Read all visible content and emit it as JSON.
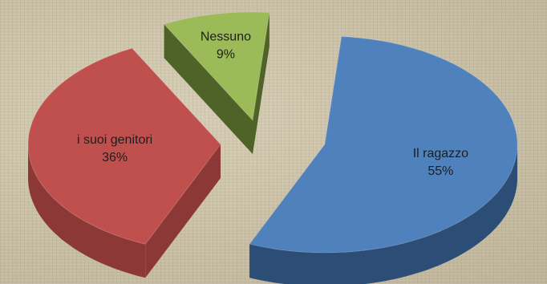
{
  "chart_data": {
    "type": "pie",
    "title": "",
    "slices": [
      {
        "label": "Il ragazzo",
        "value": 55,
        "value_label": "55%",
        "color": "#4f81bd",
        "side_color": "#2c4d75"
      },
      {
        "label": "i suoi genitori",
        "value": 36,
        "value_label": "36%",
        "color": "#c0504d",
        "side_color": "#8c3836"
      },
      {
        "label": "Nessuno",
        "value": 9,
        "value_label": "9%",
        "color": "#9bbb59",
        "side_color": "#4f6228"
      }
    ],
    "legend": "none",
    "style": "3d-exploded"
  }
}
